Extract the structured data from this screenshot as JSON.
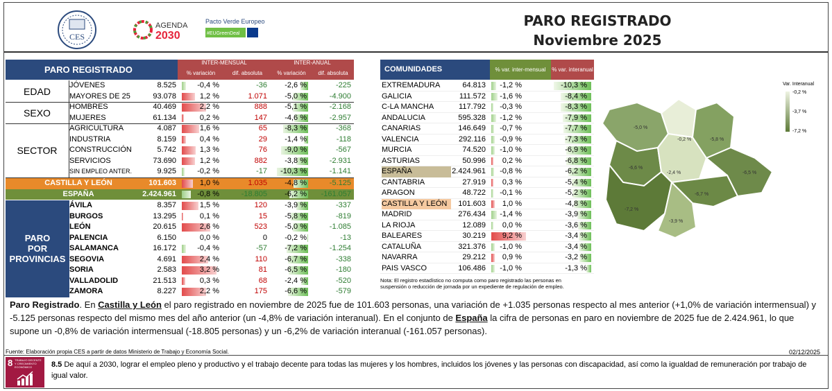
{
  "header": {
    "title": "PARO REGISTRADO",
    "subtitle": "Noviembre 2025",
    "logo_ces": "CES",
    "logo_agenda_top": "AGENDA",
    "logo_agenda_bottom": "2030",
    "logo_pacto": "Pacto Verde Europeo",
    "logo_pacto_tag": "#EUGreenDeal"
  },
  "left": {
    "title": "PARO REGISTRADO",
    "intermensual": "INTER-MENSUAL",
    "interanual": "INTER-ANUAL",
    "pct": "% variación",
    "abs": "dif. absoluta",
    "groups": [
      {
        "label": "EDAD",
        "rows": [
          [
            "JÓVENES",
            "8.525",
            "-0,4 %",
            "-36",
            "-2,6 %",
            "-225"
          ],
          [
            "MAYORES DE 25",
            "93.078",
            "1,2 %",
            "1.071",
            "-5,0 %",
            "-4.900"
          ]
        ]
      },
      {
        "label": "SEXO",
        "rows": [
          [
            "HOMBRES",
            "40.469",
            "2,2 %",
            "888",
            "-5,1 %",
            "-2.168"
          ],
          [
            "MUJERES",
            "61.134",
            "0,2 %",
            "147",
            "-4,6 %",
            "-2.957"
          ]
        ]
      },
      {
        "label": "SECTOR",
        "rows": [
          [
            "AGRICULTURA",
            "4.087",
            "1,6 %",
            "65",
            "-8,3 %",
            "-368"
          ],
          [
            "INDUSTRIA",
            "8.159",
            "0,4 %",
            "29",
            "-1,4 %",
            "-118"
          ],
          [
            "CONSTRUCCIÓN",
            "5.742",
            "1,3 %",
            "76",
            "-9,0 %",
            "-567"
          ],
          [
            "SERVICIOS",
            "73.690",
            "1,2 %",
            "882",
            "-3,8 %",
            "-2.931"
          ],
          [
            "SIN EMPLEO ANTER.",
            "9.925",
            "-0,2 %",
            "-17",
            "-10,3 %",
            "-1.141"
          ]
        ]
      }
    ],
    "cyl": [
      "CASTILLA Y LEÓN",
      "101.603",
      "1,0 %",
      "1.035",
      "-4,8 %",
      "-5.125"
    ],
    "esp": [
      "ESPAÑA",
      "2.424.961",
      "-0,8 %",
      "-18.805",
      "-6,2 %",
      "-161.057"
    ],
    "prov_label": [
      "PARO",
      "POR",
      "PROVINCIAS"
    ],
    "prov": [
      [
        "ÁVILA",
        "8.357",
        "1,5 %",
        "120",
        "-3,9 %",
        "-337"
      ],
      [
        "BURGOS",
        "13.295",
        "0,1 %",
        "15",
        "-5,8 %",
        "-819"
      ],
      [
        "LEÓN",
        "20.615",
        "2,6 %",
        "523",
        "-5,0 %",
        "-1.085"
      ],
      [
        "PALENCIA",
        "6.150",
        "0,0 %",
        "0",
        "-0,2 %",
        "-13"
      ],
      [
        "SALAMANCA",
        "16.172",
        "-0,4 %",
        "-57",
        "-7,2 %",
        "-1.254"
      ],
      [
        "SEGOVIA",
        "4.691",
        "2,4 %",
        "110",
        "-6,7 %",
        "-338"
      ],
      [
        "SORIA",
        "2.583",
        "3,2 %",
        "81",
        "-6,5 %",
        "-180"
      ],
      [
        "VALLADOLID",
        "21.513",
        "0,3 %",
        "68",
        "-2,4 %",
        "-520"
      ],
      [
        "ZAMORA",
        "8.227",
        "2,2 %",
        "175",
        "-6,6 %",
        "-579"
      ]
    ]
  },
  "ccaa": {
    "title": "COMUNIDADES AUTÓNOMAS",
    "col_im": "% var. inter-mensual",
    "col_ia": "% var. interanual",
    "rows": [
      [
        "EXTREMADURA",
        "64.813",
        "-1,2 %",
        "-10,3 %"
      ],
      [
        "GALICIA",
        "111.572",
        "-1,6 %",
        "-8,4 %"
      ],
      [
        "C-LA MANCHA",
        "117.792",
        "-0,3 %",
        "-8,3 %"
      ],
      [
        "ANDALUCIA",
        "595.328",
        "-1,2 %",
        "-7,9 %"
      ],
      [
        "CANARIAS",
        "146.649",
        "-0,7 %",
        "-7,7 %"
      ],
      [
        "VALENCIA",
        "292.116",
        "-0,9 %",
        "-7,3 %"
      ],
      [
        "MURCIA",
        "74.520",
        "-1,0 %",
        "-6,9 %"
      ],
      [
        "ASTURIAS",
        "50.996",
        "0,2 %",
        "-6,8 %"
      ],
      [
        "ESPAÑA",
        "2.424.961",
        "-0,8 %",
        "-6,2 %"
      ],
      [
        "CANTABRIA",
        "27.919",
        "0,3 %",
        "-5,4 %"
      ],
      [
        "ARAGON",
        "48.722",
        "-0,1 %",
        "-5,2 %"
      ],
      [
        "CASTILLA Y LEÓN",
        "101.603",
        "1,0 %",
        "-4,8 %"
      ],
      [
        "MADRID",
        "276.434",
        "-1,4 %",
        "-3,9 %"
      ],
      [
        "LA RIOJA",
        "12.089",
        "0,0 %",
        "-3,6 %"
      ],
      [
        "BALEARES",
        "30.219",
        "9,2 %",
        "-3,4 %"
      ],
      [
        "CATALUÑA",
        "321.376",
        "-1,0 %",
        "-3,4 %"
      ],
      [
        "NAVARRA",
        "29.212",
        "0,9 %",
        "-3,2 %"
      ],
      [
        "PAIS VASCO",
        "106.486",
        "-1,0 %",
        "-1,3 %"
      ]
    ],
    "note": "Nota:  El registro estadístico no computa como paro registrado las personas en suspensión o reducción de jornada por un expediente de regulación de empleo."
  },
  "map": {
    "legend_title": "Var. Interanual",
    "legend": [
      "-0,2 %",
      "-3,7 %",
      "-7,2 %"
    ],
    "labels": [
      "-5,0 %",
      "-0,2 %",
      "-5,8 %",
      "-6,6 %",
      "-2,4 %",
      "-6,5 %",
      "-6,7 %",
      "-7,2 %",
      "-3,9 %"
    ]
  },
  "paragraph": {
    "p1": "Paro Registrado",
    "p2": ". En ",
    "p3": "Castilla y León",
    "p4": " el paro registrado en ",
    "p5": "noviembre",
    "p6": " de 2025 fue de 101.603 personas, una variación de +1.035 personas respecto al mes anterior (+1,0% de variación intermensual) y -5.125 personas respecto del mismo mes del año anterior (un -4,8% de variación interanual). En el conjunto de ",
    "p7": "España",
    "p8": " la cifra de personas en paro en ",
    "p9": "noviembre",
    "p10": " de 2025 fue de 2.424.961, lo que supone un -0,8% de variación intermensual (-18.805 personas) y un -6,2% de variación interanual (-161.057 personas)."
  },
  "footer": {
    "source": "Fuente: Elaboración propia CES a partir de datos Ministerio de Trabajo y Economía Social.",
    "date": "02/12/2025",
    "sdg_num": "8",
    "sdg_title": "TRABAJO DECENTE Y CRECIMIENTO ECONÓMICO",
    "goal_num": "8.5",
    "goal_text": "  De aquí a 2030, lograr el empleo pleno y productivo y el trabajo decente para todas las mujeres y los hombres, incluidos los jóvenes y las personas con discapacidad, así como la igualdad de remuneración por trabajo de igual valor."
  }
}
